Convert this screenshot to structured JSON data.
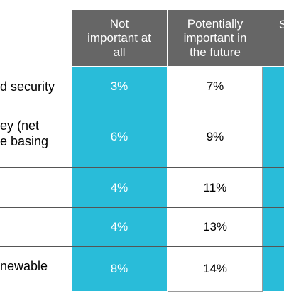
{
  "table": {
    "header": [
      [
        "Not",
        "important at",
        "all"
      ],
      [
        "Potentially",
        "important in",
        "the future"
      ],
      [
        "S"
      ]
    ],
    "rows": [
      {
        "label": [
          "d security"
        ],
        "cells": [
          "3%",
          "7%"
        ]
      },
      {
        "label": [
          "ey (net",
          "e basing"
        ],
        "cells": [
          "6%",
          "9%"
        ]
      },
      {
        "label": [],
        "cells": [
          "4%",
          "11%"
        ]
      },
      {
        "label": [],
        "cells": [
          "4%",
          "13%"
        ]
      },
      {
        "label": [
          "newable"
        ],
        "cells": [
          "8%",
          "14%"
        ]
      }
    ]
  }
}
